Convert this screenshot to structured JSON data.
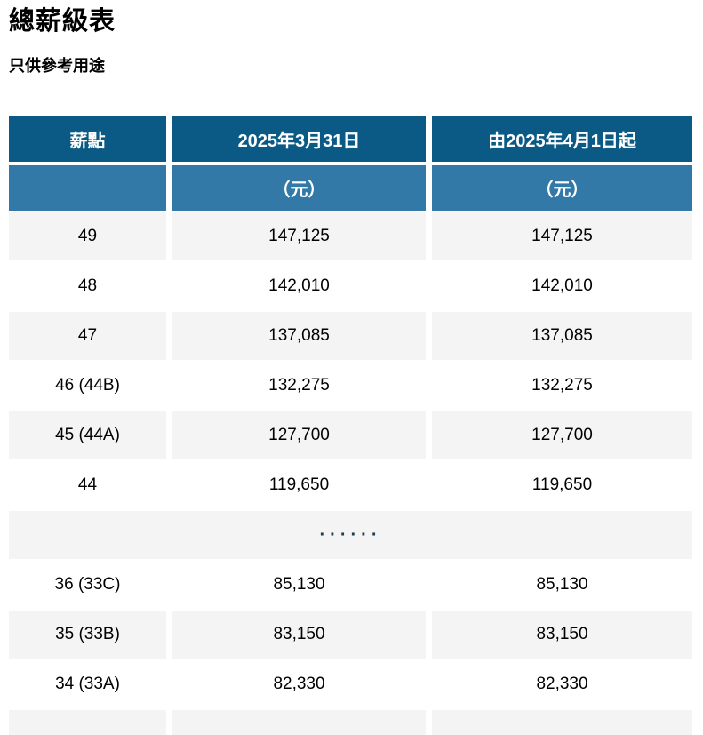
{
  "page": {
    "title": "總薪級表",
    "subtitle": "只供參考用途"
  },
  "table": {
    "headers": {
      "pay_point": "薪點",
      "date_before": "2025年3月31日",
      "date_after": "由2025年4月1日起"
    },
    "subheaders": {
      "pay_point": "",
      "unit_before": "（元）",
      "unit_after": "（元）"
    },
    "ellipsis": "······",
    "rows": [
      {
        "point": "49",
        "before": "147,125",
        "after": "147,125"
      },
      {
        "point": "48",
        "before": "142,010",
        "after": "142,010"
      },
      {
        "point": "47",
        "before": "137,085",
        "after": "137,085"
      },
      {
        "point": "46 (44B)",
        "before": "132,275",
        "after": "132,275"
      },
      {
        "point": "45 (44A)",
        "before": "127,700",
        "after": "127,700"
      },
      {
        "point": "44",
        "before": "119,650",
        "after": "119,650"
      },
      {
        "type": "ellipsis"
      },
      {
        "point": "36 (33C)",
        "before": "85,130",
        "after": "85,130"
      },
      {
        "point": "35 (33B)",
        "before": "83,150",
        "after": "83,150"
      },
      {
        "point": "34 (33A)",
        "before": "82,330",
        "after": "82,330"
      },
      {
        "point": "",
        "before": "",
        "after": ""
      }
    ]
  },
  "colors": {
    "header_dark": "#0b5a85",
    "header_light": "#3379a7",
    "row_alt": "#f4f4f4",
    "ellipsis_text": "#1b3d4f"
  }
}
